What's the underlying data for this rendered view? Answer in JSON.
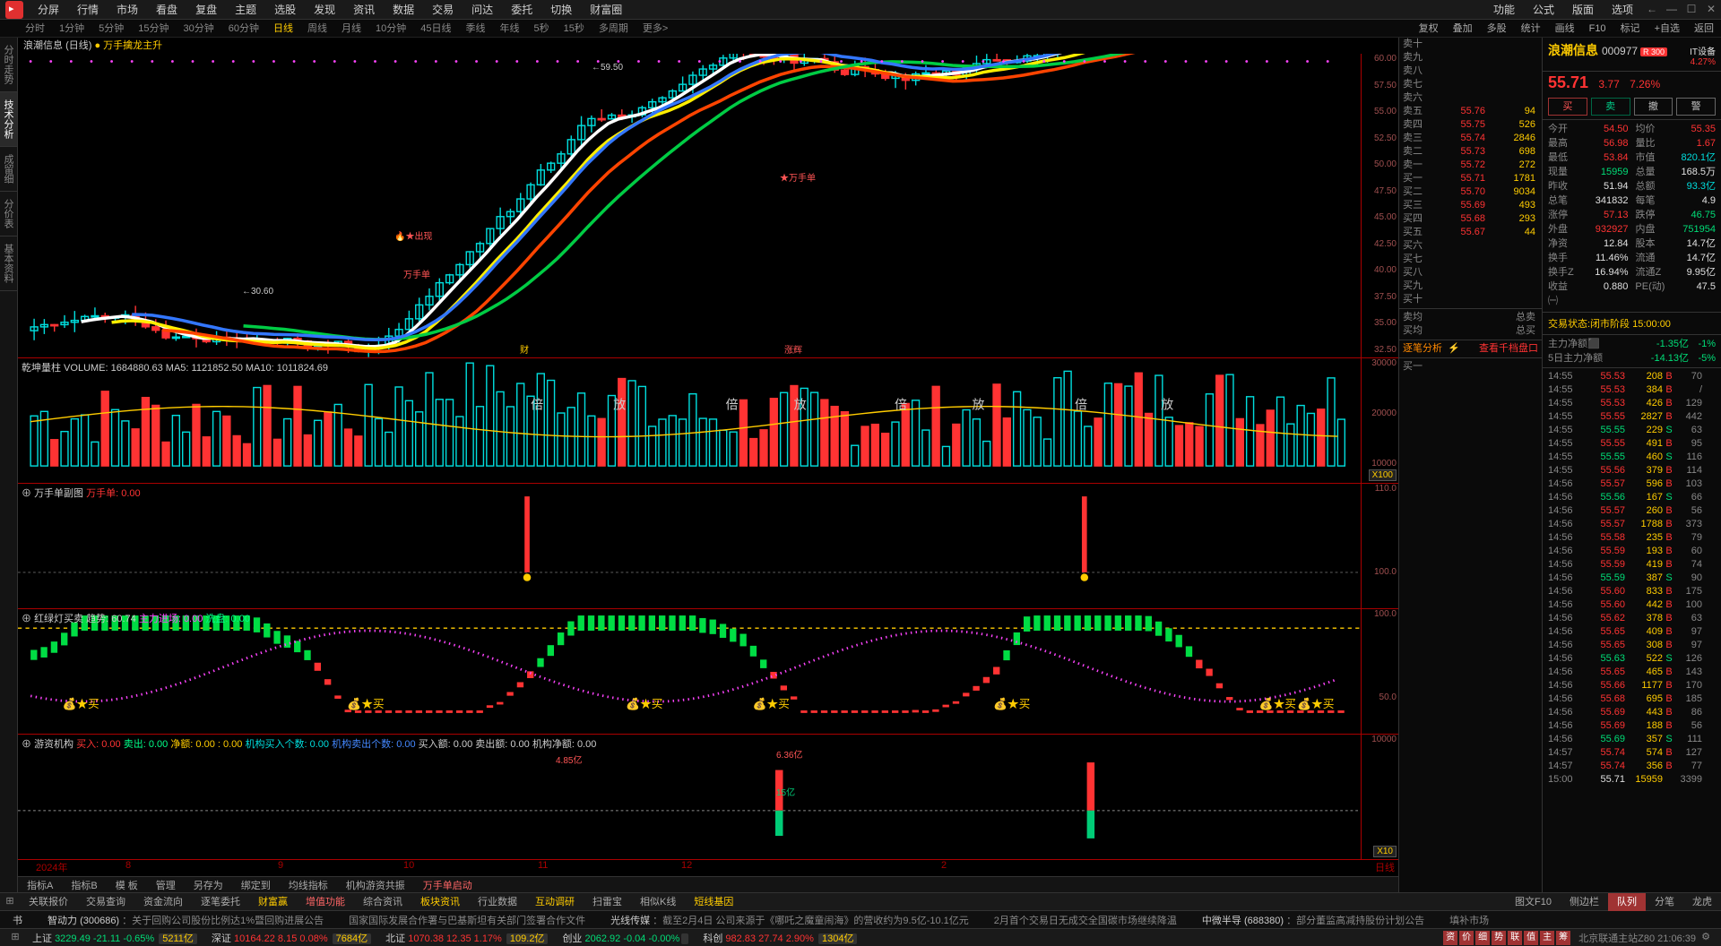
{
  "top_menu": [
    "分屏",
    "行情",
    "市场",
    "看盘",
    "复盘",
    "主题",
    "选股",
    "发现",
    "资讯",
    "数据",
    "交易",
    "问达",
    "委托",
    "切换",
    "财富圈"
  ],
  "top_menu_right": [
    "功能",
    "公式",
    "版面",
    "选项"
  ],
  "timeframes": [
    "分时",
    "1分钟",
    "5分钟",
    "15分钟",
    "30分钟",
    "60分钟",
    "日线",
    "周线",
    "月线",
    "10分钟",
    "45日线",
    "季线",
    "年线",
    "5秒",
    "15秒",
    "多周期",
    "更多>"
  ],
  "timeframe_active": 6,
  "tf_right": [
    "复权",
    "叠加",
    "多股",
    "统计",
    "画线",
    "F10",
    "标记",
    "+自选",
    "返回"
  ],
  "left_vtabs": [
    "分时走势",
    "技术分析",
    "成留细",
    "分价表",
    "基本资料"
  ],
  "chart_title": {
    "name": "浪潮信息",
    "type": "(日线)",
    "tag": "● 万手擒龙主升"
  },
  "main_chart": {
    "high_label": "59.50",
    "low_label": "30.60",
    "y_ticks": [
      "60.00",
      "57.50",
      "55.00",
      "52.50",
      "50.00",
      "47.50",
      "45.00",
      "42.50",
      "40.00",
      "37.50",
      "35.00",
      "32.50"
    ],
    "annot1": "万手单",
    "annot2": "财",
    "annot3": "涨辉",
    "annot4": "火★出现"
  },
  "vol_ind": {
    "label": "乾坤量柱  VOLUME: 1684880.63  MA5: 1121852.50  MA10: 1011824.69",
    "y_ticks": [
      "30000",
      "20000",
      "10000"
    ],
    "corner": "X100"
  },
  "sub1": {
    "label": "万手单副图",
    "val": "万手单: 0.00",
    "y_ticks": [
      "110.0",
      "100.0"
    ]
  },
  "sub2": {
    "label": "红绿灯买卖  趋势: 60.74",
    "m1": "主力进场: 0.00",
    "m2": "洗盘: 0.00",
    "y_ticks": [
      "100.0",
      "50.0"
    ]
  },
  "sub3": {
    "label": "游资机构",
    "b": "买入: 0.00",
    "s": "卖出: 0.00",
    "n": "净额: 0.00 : 0.00",
    "j": "机构买入个数: 0.00",
    "j2": "机构卖出个数: 0.00",
    "b2": "买入额: 0.00  卖出额: 0.00  机构净额: 0.00",
    "a1": "4.85亿",
    "a2": "6.36亿",
    "a3": "15亿",
    "y_ticks": [
      "10000"
    ],
    "corner": "X10"
  },
  "time_axis": [
    "2024年",
    "8",
    "9",
    "10",
    "11",
    "12",
    "2"
  ],
  "time_axis_right": "日线",
  "ind_tabs": [
    "指标A",
    "指标B",
    "模 板",
    "管理",
    "另存为",
    "绑定到",
    "均线指标",
    "机构游资共振",
    "万手单启动"
  ],
  "func_tabs": [
    "关联报价",
    "交易查询",
    "资金流向",
    "逐笔委托",
    "财富赢",
    "增值功能",
    "综合资讯",
    "板块资讯",
    "行业数据",
    "互动调研",
    "扫雷宝",
    "相似K线",
    "短线基因"
  ],
  "func_right": [
    "图文F10",
    "侧边栏",
    "队列",
    "分笔",
    "龙虎"
  ],
  "orderbook": {
    "sells_empty": [
      "卖十",
      "卖九",
      "卖八",
      "卖七",
      "卖六"
    ],
    "sells": [
      [
        "卖五",
        "55.76",
        "94"
      ],
      [
        "卖四",
        "55.75",
        "526"
      ],
      [
        "卖三",
        "55.74",
        "2846"
      ],
      [
        "卖二",
        "55.73",
        "698"
      ],
      [
        "卖一",
        "55.72",
        "272"
      ]
    ],
    "buys": [
      [
        "买一",
        "55.71",
        "1781"
      ],
      [
        "买二",
        "55.70",
        "9034"
      ],
      [
        "买三",
        "55.69",
        "493"
      ],
      [
        "买四",
        "55.68",
        "293"
      ],
      [
        "买五",
        "55.67",
        "44"
      ]
    ],
    "buys_empty": [
      "买六",
      "买七",
      "买八",
      "买九",
      "买十"
    ],
    "sum": [
      [
        "卖均",
        "",
        "总卖"
      ],
      [
        "买均",
        "",
        "总买"
      ]
    ],
    "analysis": "逐笔分析",
    "view": "查看千档盘口",
    "b1_row": [
      "买一",
      "",
      ""
    ]
  },
  "stock": {
    "name": "浪潮信息",
    "code": "000977",
    "tag": "R 300",
    "industry": "IT设备",
    "industry_chg": "4.27%",
    "price": "55.71",
    "chg": "3.77",
    "pct": "7.26%",
    "actions": [
      "买",
      "卖",
      "撤",
      "警"
    ],
    "grid": [
      [
        "今开",
        "54.50",
        "red",
        "均价",
        "55.35",
        "red"
      ],
      [
        "最高",
        "56.98",
        "red",
        "量比",
        "1.67",
        "red"
      ],
      [
        "最低",
        "53.84",
        "red",
        "市值",
        "820.1亿",
        "cyan"
      ],
      [
        "现量",
        "15959",
        "green",
        "总量",
        "168.5万",
        "white"
      ],
      [
        "昨收",
        "51.94",
        "white",
        "总额",
        "93.3亿",
        "cyan"
      ],
      [
        "总笔",
        "341832",
        "white",
        "每笔",
        "4.9",
        "white"
      ],
      [
        "涨停",
        "57.13",
        "red",
        "跌停",
        "46.75",
        "green"
      ],
      [
        "外盘",
        "932927",
        "red",
        "内盘",
        "751954",
        "green"
      ],
      [
        "净资",
        "12.84",
        "white",
        "股本",
        "14.7亿",
        "white"
      ],
      [
        "换手",
        "11.46%",
        "white",
        "流通",
        "14.7亿",
        "white"
      ],
      [
        "换手Z",
        "16.94%",
        "white",
        "流通Z",
        "9.95亿",
        "white"
      ],
      [
        "收益㈠",
        "0.880",
        "white",
        "PE(动)",
        "47.5",
        "white"
      ]
    ],
    "status": "交易状态:闭市阶段 15:00:00",
    "cap_flow": [
      [
        "主力净额",
        "⬛",
        "-1.35亿",
        "-1%"
      ],
      [
        "5日主力净额",
        "",
        "-14.13亿",
        "-5%"
      ]
    ]
  },
  "ticks": [
    [
      "14:55",
      "55.53",
      "208",
      "B",
      "70",
      "red"
    ],
    [
      "14:55",
      "55.53",
      "384",
      "B",
      "/",
      "red"
    ],
    [
      "14:55",
      "55.53",
      "426",
      "B",
      "129",
      "red"
    ],
    [
      "14:55",
      "55.55",
      "2827",
      "B",
      "442",
      "red"
    ],
    [
      "14:55",
      "55.55",
      "229",
      "S",
      "63",
      "green"
    ],
    [
      "14:55",
      "55.55",
      "491",
      "B",
      "95",
      "red"
    ],
    [
      "14:55",
      "55.55",
      "460",
      "S",
      "116",
      "green"
    ],
    [
      "14:55",
      "55.56",
      "379",
      "B",
      "114",
      "red"
    ],
    [
      "14:56",
      "55.57",
      "596",
      "B",
      "103",
      "red"
    ],
    [
      "14:56",
      "55.56",
      "167",
      "S",
      "66",
      "green"
    ],
    [
      "14:56",
      "55.57",
      "260",
      "B",
      "56",
      "red"
    ],
    [
      "14:56",
      "55.57",
      "1788",
      "B",
      "373",
      "red"
    ],
    [
      "14:56",
      "55.58",
      "235",
      "B",
      "79",
      "red"
    ],
    [
      "14:56",
      "55.59",
      "193",
      "B",
      "60",
      "red"
    ],
    [
      "14:56",
      "55.59",
      "419",
      "B",
      "74",
      "red"
    ],
    [
      "14:56",
      "55.59",
      "387",
      "S",
      "90",
      "green"
    ],
    [
      "14:56",
      "55.60",
      "833",
      "B",
      "175",
      "red"
    ],
    [
      "14:56",
      "55.60",
      "442",
      "B",
      "100",
      "red"
    ],
    [
      "14:56",
      "55.62",
      "378",
      "B",
      "63",
      "red"
    ],
    [
      "14:56",
      "55.65",
      "409",
      "B",
      "97",
      "red"
    ],
    [
      "14:56",
      "55.65",
      "308",
      "B",
      "97",
      "red"
    ],
    [
      "14:56",
      "55.63",
      "522",
      "S",
      "126",
      "green"
    ],
    [
      "14:56",
      "55.65",
      "465",
      "B",
      "143",
      "red"
    ],
    [
      "14:56",
      "55.66",
      "1177",
      "B",
      "170",
      "red"
    ],
    [
      "14:56",
      "55.68",
      "695",
      "B",
      "185",
      "red"
    ],
    [
      "14:56",
      "55.69",
      "443",
      "B",
      "86",
      "red"
    ],
    [
      "14:56",
      "55.69",
      "188",
      "B",
      "56",
      "red"
    ],
    [
      "14:56",
      "55.69",
      "357",
      "S",
      "111",
      "green"
    ],
    [
      "14:57",
      "55.74",
      "574",
      "B",
      "127",
      "red"
    ],
    [
      "14:57",
      "55.74",
      "356",
      "B",
      "77",
      "red"
    ],
    [
      "15:00",
      "55.71",
      "15959",
      "",
      "3399",
      "white"
    ]
  ],
  "buy1_label": "买一",
  "news": [
    {
      "t": "书",
      "body": ""
    },
    {
      "t": "智动力",
      "code": "(300686)",
      "body": "：关于回购公司股份比例达1%暨回购进展公告"
    },
    {
      "t": "",
      "body": "国家国际发展合作署与巴基斯坦有关部门签署合作文件"
    },
    {
      "t": "光线传媒",
      "body": "：截至2月4日 公司来源于《哪吒之魔童闹海》的营收约为9.5亿-10.1亿元"
    },
    {
      "t": "",
      "body": "2月首个交易日无成交全国碳市场继续降温"
    },
    {
      "t": "中微半导",
      "code": "(688380)",
      "body": "：部分董监高减持股份计划公告"
    },
    {
      "t": "",
      "body": "填补市场"
    }
  ],
  "indices": [
    {
      "n": "上证",
      "v": "3229.49",
      "c": "-21.11",
      "p": "-0.65%",
      "a": "5211亿",
      "cls": "green"
    },
    {
      "n": "深证",
      "v": "10164.22",
      "c": "8.15",
      "p": "0.08%",
      "a": "7684亿",
      "cls": "red"
    },
    {
      "n": "北证",
      "v": "1070.38",
      "c": "12.35",
      "p": "1.17%",
      "a": "109.2亿",
      "cls": "red"
    },
    {
      "n": "创业",
      "v": "2062.92",
      "c": "-0.04",
      "p": "-0.00%",
      "a": "",
      "cls": "green"
    },
    {
      "n": "科创",
      "v": "982.83",
      "c": "27.74",
      "p": "2.90%",
      "a": "1304亿",
      "cls": "red"
    }
  ],
  "status_right": "北京联通主站Z80  21:06:39",
  "mini_icons": [
    "资",
    "价",
    "细",
    "势",
    "联",
    "值",
    "主",
    "筹"
  ]
}
